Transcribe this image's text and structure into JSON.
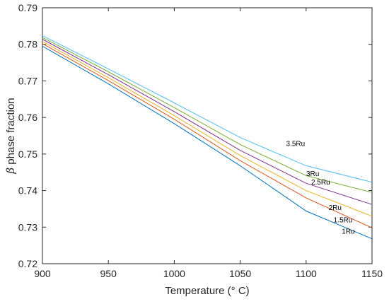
{
  "chart_data": {
    "type": "line",
    "title": "",
    "xlabel": "Temperature (° C)",
    "ylabel_symbol": "β",
    "ylabel_text": " phase fraction",
    "xlim": [
      900,
      1150
    ],
    "ylim": [
      0.72,
      0.79
    ],
    "xticks": [
      900,
      950,
      1000,
      1050,
      1100,
      1150
    ],
    "yticks": [
      "0.72",
      "0.73",
      "0.74",
      "0.75",
      "0.76",
      "0.77",
      "0.78",
      "0.79"
    ],
    "grid": false,
    "legend": "none",
    "series": [
      {
        "name": "1Ru",
        "color": "#0072BD",
        "x": [
          900,
          950,
          1000,
          1050,
          1100,
          1150
        ],
        "y": [
          0.7795,
          0.7692,
          0.7583,
          0.7468,
          0.7344,
          0.7268
        ],
        "label_at": [
          1132,
          0.7282
        ]
      },
      {
        "name": "1.5Ru",
        "color": "#D95319",
        "x": [
          900,
          950,
          1000,
          1050,
          1100,
          1150
        ],
        "y": [
          0.7802,
          0.7701,
          0.7595,
          0.7482,
          0.738,
          0.7298
        ],
        "label_at": [
          1128,
          0.7313
        ]
      },
      {
        "name": "2Ru",
        "color": "#EDB120",
        "x": [
          900,
          950,
          1000,
          1050,
          1100,
          1150
        ],
        "y": [
          0.7808,
          0.7709,
          0.7605,
          0.7496,
          0.74,
          0.733
        ],
        "label_at": [
          1122,
          0.7347
        ]
      },
      {
        "name": "2.5Ru",
        "color": "#7E2F8E",
        "x": [
          900,
          950,
          1000,
          1050,
          1100,
          1150
        ],
        "y": [
          0.7814,
          0.7717,
          0.7616,
          0.751,
          0.742,
          0.7362
        ],
        "label_at": [
          1111,
          0.7417
        ]
      },
      {
        "name": "3Ru",
        "color": "#77AC30",
        "x": [
          900,
          950,
          1000,
          1050,
          1100,
          1150
        ],
        "y": [
          0.7819,
          0.7725,
          0.7627,
          0.7526,
          0.7441,
          0.7395
        ],
        "label_at": [
          1105,
          0.744
        ]
      },
      {
        "name": "3.5Ru",
        "color": "#4DBEEE",
        "x": [
          900,
          950,
          1000,
          1050,
          1100,
          1150
        ],
        "y": [
          0.7824,
          0.7733,
          0.764,
          0.7545,
          0.7468,
          0.7423
        ],
        "label_at": [
          1092,
          0.7522
        ]
      }
    ]
  }
}
